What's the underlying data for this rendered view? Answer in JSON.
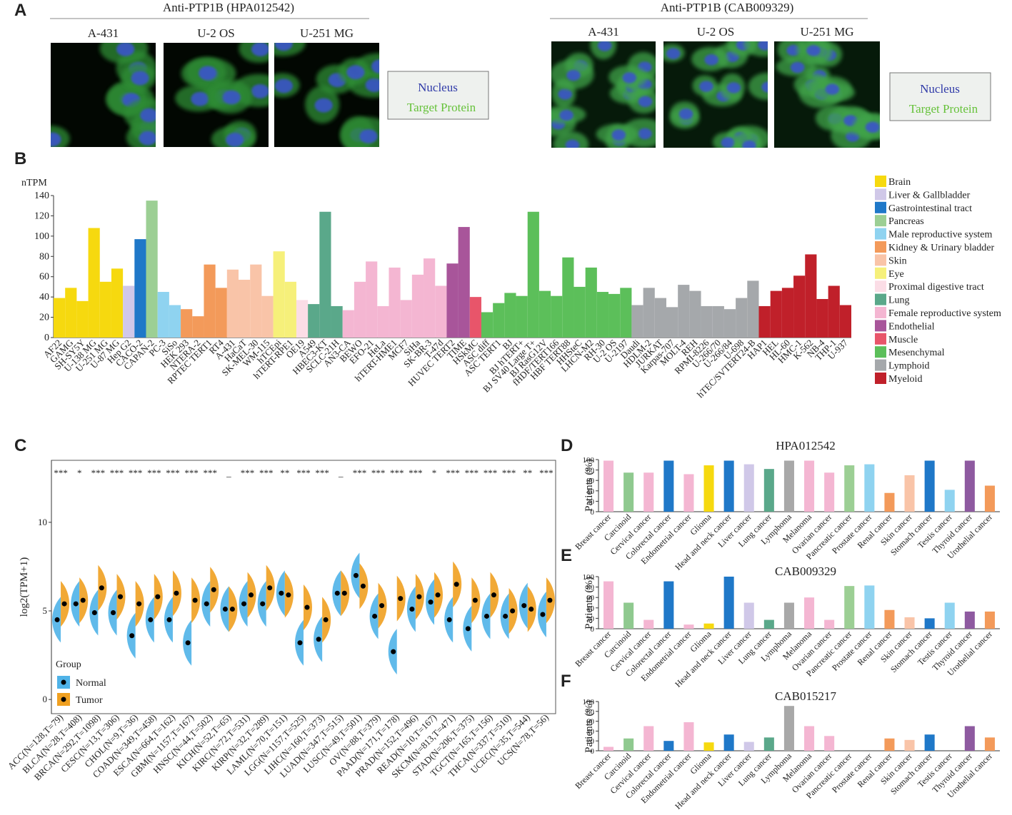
{
  "panel_labels": [
    "A",
    "B",
    "C",
    "D",
    "E",
    "F"
  ],
  "panel_a": [
    {
      "title": "Anti-PTP1B (HPA012542)",
      "cells": [
        "A-431",
        "U-2 OS",
        "U-251 MG"
      ],
      "legend": [
        "Nucleus",
        "Target Protein"
      ]
    },
    {
      "title": "Anti-PTP1B (CAB009329)",
      "cells": [
        "A-431",
        "U-2 OS",
        "U-251 MG"
      ],
      "legend": [
        "Nucleus",
        "Target Protein"
      ]
    }
  ],
  "chart_data": [
    {
      "type": "bar",
      "ylabel": "nTPM",
      "categories": [
        "AF22",
        "GAMG",
        "SH-SY5Y",
        "U-138 MG",
        "U-251 MG",
        "U-87 MG",
        "Hep G2",
        "CACO-2",
        "CAPAN-2",
        "PC-3",
        "SiSo",
        "HEK 293",
        "NTERA-2",
        "RPTEC TERT1",
        "RT4",
        "A-431",
        "HaCaT",
        "SK-MEL-30",
        "WM-115",
        "hTCEpi",
        "hTERT-RPE1",
        "OE19",
        "A549",
        "HBEC3-KT",
        "SCLC-21H",
        "AN3-CA",
        "BEWO",
        "EFO-21",
        "HeLa",
        "hTERT-HME1",
        "MCF7",
        "SiHa",
        "SK-BR-3",
        "T-47d",
        "HUVEC TERT2",
        "TIME",
        "HSkMC",
        "ASC diff",
        "ASC TERT1",
        "BJ",
        "BJ hTERT+",
        "BJ SV40 Large T+",
        "BJ RasG12V",
        "fHDF/TERT166",
        "HBF TERT88",
        "HHSteC",
        "LHCN-M2",
        "RH-30",
        "U-2 OS",
        "U-2197",
        "Daudi",
        "HDLM-2",
        "JURKAT",
        "Karpas-707",
        "MOLT-4",
        "REH",
        "RPMI-8226",
        "U-266/70",
        "U-266/84",
        "U-698",
        "hTEC/SVTERT24-B",
        "HAP1",
        "HEL",
        "HL-60",
        "HMC-1",
        "K-562",
        "NB-4",
        "THP-1",
        "U-937"
      ],
      "values": [
        39,
        49,
        36,
        108,
        55,
        68,
        51,
        97,
        135,
        45,
        32,
        28,
        21,
        72,
        49,
        67,
        57,
        72,
        41,
        85,
        55,
        37,
        33,
        124,
        31,
        27,
        55,
        75,
        31,
        69,
        37,
        62,
        78,
        51,
        73,
        109,
        40,
        25,
        34,
        44,
        41,
        124,
        46,
        41,
        79,
        50,
        69,
        45,
        43,
        49,
        32,
        49,
        39,
        30,
        52,
        46,
        31,
        31,
        28,
        39,
        56,
        31,
        46,
        49,
        61,
        82,
        38,
        51,
        32
      ],
      "colors": [
        "#f6d90f",
        "#f6d90f",
        "#f6d90f",
        "#f6d90f",
        "#f6d90f",
        "#f6d90f",
        "#d0c8e8",
        "#1f78c8",
        "#9ccf94",
        "#8fd3f0",
        "#8fd3f0",
        "#f39a5a",
        "#f39a5a",
        "#f39a5a",
        "#f39a5a",
        "#f9c4a8",
        "#f9c4a8",
        "#f9c4a8",
        "#f9c4a8",
        "#f6f07a",
        "#f6f07a",
        "#fbdde6",
        "#5aa88a",
        "#5aa88a",
        "#5aa88a",
        "#f4b6d2",
        "#f4b6d2",
        "#f4b6d2",
        "#f4b6d2",
        "#f4b6d2",
        "#f4b6d2",
        "#f4b6d2",
        "#f4b6d2",
        "#f4b6d2",
        "#a8559a",
        "#a8559a",
        "#e8556a",
        "#5cbf5a",
        "#5cbf5a",
        "#5cbf5a",
        "#5cbf5a",
        "#5cbf5a",
        "#5cbf5a",
        "#5cbf5a",
        "#5cbf5a",
        "#5cbf5a",
        "#5cbf5a",
        "#5cbf5a",
        "#5cbf5a",
        "#5cbf5a",
        "#a5a8ab",
        "#a5a8ab",
        "#a5a8ab",
        "#a5a8ab",
        "#a5a8ab",
        "#a5a8ab",
        "#a5a8ab",
        "#a5a8ab",
        "#a5a8ab",
        "#a5a8ab",
        "#a5a8ab",
        "#c0202a",
        "#c0202a",
        "#c0202a",
        "#c0202a",
        "#c0202a",
        "#c0202a",
        "#c0202a",
        "#c0202a"
      ],
      "ylim": [
        0,
        140
      ],
      "yticks": [
        0,
        20,
        40,
        60,
        80,
        100,
        120,
        140
      ],
      "legend": [
        {
          "name": "Brain",
          "color": "#f6d90f"
        },
        {
          "name": "Liver & Gallbladder",
          "color": "#d0c8e8"
        },
        {
          "name": "Gastrointestinal tract",
          "color": "#1f78c8"
        },
        {
          "name": "Pancreas",
          "color": "#9ccf94"
        },
        {
          "name": "Male reproductive system",
          "color": "#8fd3f0"
        },
        {
          "name": "Kidney & Urinary bladder",
          "color": "#f39a5a"
        },
        {
          "name": "Skin",
          "color": "#f9c4a8"
        },
        {
          "name": "Eye",
          "color": "#f6f07a"
        },
        {
          "name": "Proximal digestive tract",
          "color": "#fbdde6"
        },
        {
          "name": "Lung",
          "color": "#5aa88a"
        },
        {
          "name": "Female reproductive system",
          "color": "#f4b6d2"
        },
        {
          "name": "Endothelial",
          "color": "#a8559a"
        },
        {
          "name": "Muscle",
          "color": "#e8556a"
        },
        {
          "name": "Mesenchymal",
          "color": "#5cbf5a"
        },
        {
          "name": "Lymphoid",
          "color": "#a5a8ab"
        },
        {
          "name": "Myeloid",
          "color": "#c0202a"
        }
      ]
    },
    {
      "type": "violin",
      "ylabel": "log2(TPM+1)",
      "legend_title": "Group",
      "categories": [
        "ACC(N=128,T=79)",
        "BLCA(N=28,T=408)",
        "BRCA(N=292,T=1098)",
        "CESC(N=13,T=306)",
        "CHOL(N=9,T=36)",
        "COAD(N=349,T=458)",
        "ESCA(N=664,T=162)",
        "GBM(N=1157,T=167)",
        "HNSC(N=44,T=502)",
        "KICH(N=52,T=65)",
        "KIRC(N=72,T=531)",
        "KIRP(N=32,T=289)",
        "LAML(N=70,T=151)",
        "LGG(N=1157,T=525)",
        "LIHC(N=160,T=373)",
        "LUAD(N=347,T=515)",
        "LUSC(N=49,T=501)",
        "OV(N=88,T=379)",
        "PAAD(N=171,T=178)",
        "PRAD(N=152,T=496)",
        "READ(N=10,T=167)",
        "SKCM(N=813,T=471)",
        "STAD(N=206,T=375)",
        "TGCT(N=165,T=156)",
        "THCA(N=337,T=510)",
        "UCEC(N=35,T=544)",
        "UCS(N=78,T=56)"
      ],
      "significance": [
        "***",
        "*",
        "***",
        "***",
        "***",
        "***",
        "***",
        "***",
        "***",
        "_",
        "***",
        "***",
        "**",
        "***",
        "***",
        "_",
        "***",
        "***",
        "***",
        "***",
        "*",
        "***",
        "***",
        "***",
        "***",
        "**",
        "***"
      ],
      "series": [
        {
          "name": "Normal",
          "color": "#4fb3e8",
          "values": [
            4.5,
            5.4,
            4.9,
            4.9,
            3.6,
            4.5,
            4.5,
            3.2,
            5.4,
            5.1,
            5.4,
            5.4,
            6.0,
            3.2,
            3.4,
            6.0,
            7.0,
            4.7,
            2.7,
            5.1,
            5.5,
            4.5,
            4.0,
            4.7,
            4.7,
            5.3,
            4.8
          ]
        },
        {
          "name": "Tumor",
          "color": "#f0a020",
          "values": [
            5.4,
            5.6,
            6.3,
            5.8,
            5.4,
            5.8,
            6.0,
            5.6,
            6.2,
            5.1,
            5.9,
            6.3,
            5.9,
            5.2,
            4.5,
            6.0,
            6.4,
            5.3,
            5.7,
            5.8,
            5.9,
            6.5,
            5.6,
            5.9,
            5.0,
            5.1,
            5.6
          ]
        }
      ],
      "ylim": [
        -0.8,
        13.5
      ],
      "yticks": [
        0,
        5,
        10
      ]
    },
    {
      "type": "bar",
      "title": "HPA012542",
      "ylabel": "Patients (%)",
      "categories": [
        "Breast cancer",
        "Carcinoid",
        "Cervical cancer",
        "Colorectal cancer",
        "Endometrial cancer",
        "Glioma",
        "Head and neck cancer",
        "Liver cancer",
        "Lung cancer",
        "Lymphoma",
        "Melanoma",
        "Ovarian cancer",
        "Pancreatic cancer",
        "Prostate cancer",
        "Renal cancer",
        "Skin cancer",
        "Stomach cancer",
        "Testis cancer",
        "Thyroid cancer",
        "Urothelial cancer"
      ],
      "values": [
        98,
        75,
        75,
        98,
        72,
        89,
        98,
        91,
        82,
        98,
        98,
        75,
        89,
        91,
        36,
        70,
        98,
        42,
        98,
        50
      ],
      "colors": [
        "#f4b6d2",
        "#8fc98f",
        "#f4b6d2",
        "#1f78c8",
        "#f4b6d2",
        "#f6d90f",
        "#1f78c8",
        "#d0c8e8",
        "#5aa88a",
        "#a8a8a8",
        "#f4b6d2",
        "#f4b6d2",
        "#9ccf94",
        "#8fd3f0",
        "#f39a5a",
        "#f9c4a8",
        "#1f78c8",
        "#8fd3f0",
        "#8e5aa0",
        "#f39a5a"
      ],
      "ylim": [
        0,
        100
      ],
      "yticks": [
        0,
        20,
        40,
        60,
        80,
        100
      ]
    },
    {
      "type": "bar",
      "title": "CAB009329",
      "ylabel": "Patients (%)",
      "categories": [
        "Breast cancer",
        "Carcinoid",
        "Cervical cancer",
        "Colorectal cancer",
        "Endometrial cancer",
        "Glioma",
        "Head and neck cancer",
        "Liver cancer",
        "Lung cancer",
        "Lymphoma",
        "Melanoma",
        "Ovarian cancer",
        "Pancreatic cancer",
        "Prostate cancer",
        "Renal cancer",
        "Skin cancer",
        "Stomach cancer",
        "Testis cancer",
        "Thyroid cancer",
        "Urothelial cancer"
      ],
      "values": [
        91,
        50,
        17,
        91,
        8,
        10,
        100,
        50,
        17,
        50,
        60,
        17,
        82,
        83,
        36,
        22,
        20,
        50,
        33,
        33
      ],
      "colors": [
        "#f4b6d2",
        "#8fc98f",
        "#f4b6d2",
        "#1f78c8",
        "#f4b6d2",
        "#f6d90f",
        "#1f78c8",
        "#d0c8e8",
        "#5aa88a",
        "#a8a8a8",
        "#f4b6d2",
        "#f4b6d2",
        "#9ccf94",
        "#8fd3f0",
        "#f39a5a",
        "#f9c4a8",
        "#1f78c8",
        "#8fd3f0",
        "#8e5aa0",
        "#f39a5a"
      ],
      "ylim": [
        0,
        100
      ],
      "yticks": [
        0,
        20,
        40,
        60,
        80,
        100
      ]
    },
    {
      "type": "bar",
      "title": "CAB015217",
      "ylabel": "Patients (%)",
      "categories": [
        "Breast cancer",
        "Carcinoid",
        "Cervical cancer",
        "Colorectal cancer",
        "Endometrial cancer",
        "Glioma",
        "Head and neck cancer",
        "Liver cancer",
        "Lung cancer",
        "Lymphoma",
        "Melanoma",
        "Ovarian cancer",
        "Pancreatic cancer",
        "Prostate cancer",
        "Renal cancer",
        "Skin cancer",
        "Stomach cancer",
        "Testis cancer",
        "Thyroid cancer",
        "Urothelial cancer"
      ],
      "values": [
        8,
        25,
        50,
        20,
        58,
        17,
        33,
        18,
        27,
        91,
        50,
        30,
        0,
        0,
        25,
        22,
        33,
        0,
        50,
        27
      ],
      "colors": [
        "#f4b6d2",
        "#8fc98f",
        "#f4b6d2",
        "#1f78c8",
        "#f4b6d2",
        "#f6d90f",
        "#1f78c8",
        "#d0c8e8",
        "#5aa88a",
        "#a8a8a8",
        "#f4b6d2",
        "#f4b6d2",
        "#9ccf94",
        "#8fd3f0",
        "#f39a5a",
        "#f9c4a8",
        "#1f78c8",
        "#8fd3f0",
        "#8e5aa0",
        "#f39a5a"
      ],
      "ylim": [
        0,
        100
      ],
      "yticks": [
        0,
        20,
        40,
        60,
        80,
        100
      ]
    }
  ]
}
